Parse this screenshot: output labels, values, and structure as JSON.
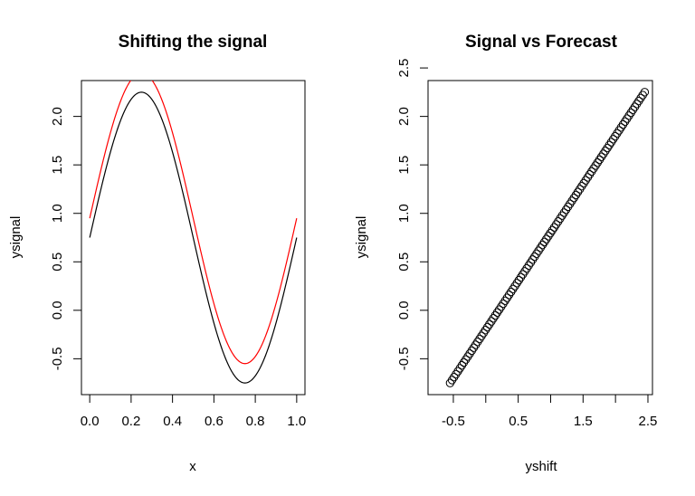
{
  "chart_data": [
    {
      "type": "line",
      "title": "Shifting the signal",
      "xlabel": "x",
      "ylabel": "ysignal",
      "xlim": [
        -0.04,
        1.04
      ],
      "ylim": [
        -0.87,
        2.37
      ],
      "xticks": [
        0.0,
        0.2,
        0.4,
        0.6,
        0.8,
        1.0
      ],
      "xtick_labels": [
        "0.0",
        "0.2",
        "0.4",
        "0.6",
        "0.8",
        "1.0"
      ],
      "yticks": [
        -0.5,
        0.0,
        0.5,
        1.0,
        1.5,
        2.0
      ],
      "ytick_labels": [
        "-0.5",
        "0.0",
        "0.5",
        "1.0",
        "1.5",
        "2.0"
      ],
      "series": [
        {
          "formula": "ysignal = 0.75 + 1.5*sin(2*pi*x)",
          "offset": 0,
          "color": "#000000",
          "x_range": [
            0,
            1
          ],
          "y_range": [
            -0.75,
            2.25
          ]
        },
        {
          "formula": "ysignal + 0.2",
          "offset": 0.2,
          "color": "#ff0000",
          "x_range": [
            0,
            1
          ],
          "y_range": [
            -0.55,
            2.45
          ]
        }
      ]
    },
    {
      "type": "scatter",
      "title": "Signal vs Forecast",
      "xlabel": "yshift",
      "ylabel": "ysignal",
      "xlim": [
        -0.89,
        2.57
      ],
      "ylim": [
        -0.87,
        2.37
      ],
      "xticks": [
        -0.5,
        0.0,
        0.5,
        1.0,
        1.5,
        2.0,
        2.5
      ],
      "xtick_labels": [
        "-0.5",
        "",
        "0.5",
        "",
        "1.5",
        "",
        "2.5"
      ],
      "yticks": [
        -0.5,
        0.0,
        0.5,
        1.0,
        1.5,
        2.0,
        2.5
      ],
      "ytick_labels": [
        "-0.5",
        "0.0",
        "0.5",
        "1.0",
        "1.5",
        "2.0",
        "2.5"
      ],
      "points": {
        "relation": "ysignal = yshift - 0.2",
        "x_range": [
          -0.55,
          2.45
        ],
        "y_range": [
          -0.75,
          2.25
        ],
        "marker": "open-circle",
        "color": "#000000"
      }
    }
  ]
}
